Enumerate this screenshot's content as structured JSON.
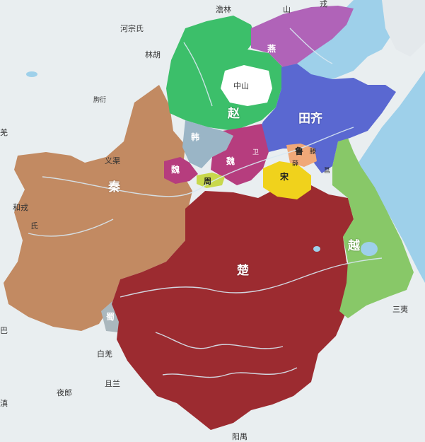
{
  "map": {
    "states": {
      "zhao": "赵",
      "yan": "燕",
      "qi": "田齐",
      "han": "韩",
      "wei_west": "魏",
      "wei_east": "魏",
      "song": "宋",
      "lu": "鲁",
      "zhou": "周",
      "qin": "秦",
      "chu": "楚",
      "yue": "越",
      "shu": "蜀",
      "zhongshan": "中山",
      "wei_small": "卫",
      "teng": "滕",
      "xue": "薛",
      "ju": "莒"
    },
    "tribes": {
      "loufan": "澹林",
      "hexuzong": "河宗氏",
      "linhu": "林胡",
      "shan": "山",
      "rong_n": "戎",
      "gouyan": "朐衍",
      "yiqu": "义渠",
      "heyi": "和戎",
      "shi": "氏",
      "qiang": "羌",
      "ba": "巴",
      "diqiang": "白羌",
      "qielan": "且兰",
      "yelang": "夜郎",
      "dian": "滇",
      "yangyu": "阳禺",
      "sanyi": "三夷"
    },
    "colors": {
      "zhao": "#3cbf6a",
      "yan": "#b063b8",
      "qi": "#5a68d1",
      "han": "#9ab5c6",
      "wei": "#b63d7e",
      "song": "#f0d21c",
      "lu": "#f0a878",
      "zhou": "#c8d84c",
      "qin": "#c28a62",
      "chu": "#9c2b30",
      "yue": "#88c868",
      "shu": "#aab7bd",
      "sea": "#9ed0ea",
      "land": "#e9eef0"
    }
  }
}
